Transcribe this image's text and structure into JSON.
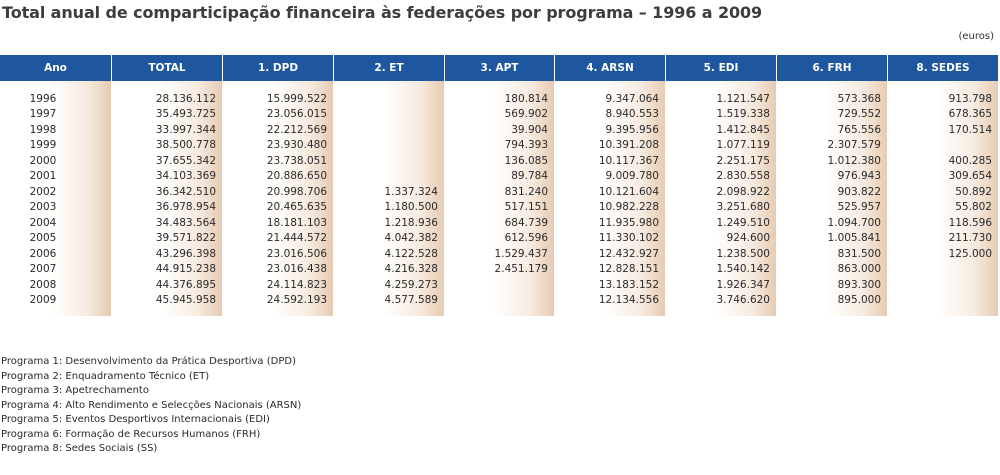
{
  "title": "Total anual de comparticipação financeira às federações por programa – 1996 a 2009",
  "unit": "(euros)",
  "headers": [
    "Ano",
    "TOTAL",
    "1. DPD",
    "2. ET",
    "3. APT",
    "4. ARSN",
    "5. EDI",
    "6. FRH",
    "8. SEDES"
  ],
  "rows": [
    [
      "1996",
      "28.136.112",
      "15.999.522",
      "",
      "180.814",
      "9.347.064",
      "1.121.547",
      "573.368",
      "913.798"
    ],
    [
      "1997",
      "35.493.725",
      "23.056.015",
      "",
      "569.902",
      "8.940.553",
      "1.519.338",
      "729.552",
      "678.365"
    ],
    [
      "1998",
      "33.997.344",
      "22.212.569",
      "",
      "39.904",
      "9.395.956",
      "1.412.845",
      "765.556",
      "170.514"
    ],
    [
      "1999",
      "38.500.778",
      "23.930.480",
      "",
      "794.393",
      "10.391.208",
      "1.077.119",
      "2.307.579",
      ""
    ],
    [
      "2000",
      "37.655.342",
      "23.738.051",
      "",
      "136.085",
      "10.117.367",
      "2.251.175",
      "1.012.380",
      "400.285"
    ],
    [
      "2001",
      "34.103.369",
      "20.886.650",
      "",
      "89.784",
      "9.009.780",
      "2.830.558",
      "976.943",
      "309.654"
    ],
    [
      "2002",
      "36.342.510",
      "20.998.706",
      "1.337.324",
      "831.240",
      "10.121.604",
      "2.098.922",
      "903.822",
      "50.892"
    ],
    [
      "2003",
      "36.978.954",
      "20.465.635",
      "1.180.500",
      "517.151",
      "10.982.228",
      "3.251.680",
      "525.957",
      "55.802"
    ],
    [
      "2004",
      "34.483.564",
      "18.181.103",
      "1.218.936",
      "684.739",
      "11.935.980",
      "1.249.510",
      "1.094.700",
      "118.596"
    ],
    [
      "2005",
      "39.571.822",
      "21.444.572",
      "4.042.382",
      "612.596",
      "11.330.102",
      "924.600",
      "1.005.841",
      "211.730"
    ],
    [
      "2006",
      "43.296.398",
      "23.016.506",
      "4.122.528",
      "1.529.437",
      "12.432.927",
      "1.238.500",
      "831.500",
      "125.000"
    ],
    [
      "2007",
      "44.915.238",
      "23.016.438",
      "4.216.328",
      "2.451.179",
      "12.828.151",
      "1.540.142",
      "863.000",
      ""
    ],
    [
      "2008",
      "44.376.895",
      "24.114.823",
      "4.259.273",
      "",
      "13.183.152",
      "1.926.347",
      "893.300",
      ""
    ],
    [
      "2009",
      "45.945.958",
      "24.592.193",
      "4.577.589",
      "",
      "12.134.556",
      "3.746.620",
      "895.000",
      ""
    ]
  ],
  "legend": [
    "Programa 1: Desenvolvimento da Prática Desportiva (DPD)",
    "Programa 2: Enquadramento Técnico (ET)",
    "Programa 3: Apetrechamento",
    "Programa 4: Alto Rendimento e Selecções Nacionais (ARSN)",
    "Programa 5: Eventos Desportivos Internacionais (EDI)",
    "Programa 6: Formação de Recursos Humanos (FRH)",
    "Programa 8: Sedes Sociais (SS)"
  ],
  "colors": {
    "header_bg": "#1e56a0",
    "header_text": "#ffffff",
    "column_tint": "#e6cbb2"
  }
}
